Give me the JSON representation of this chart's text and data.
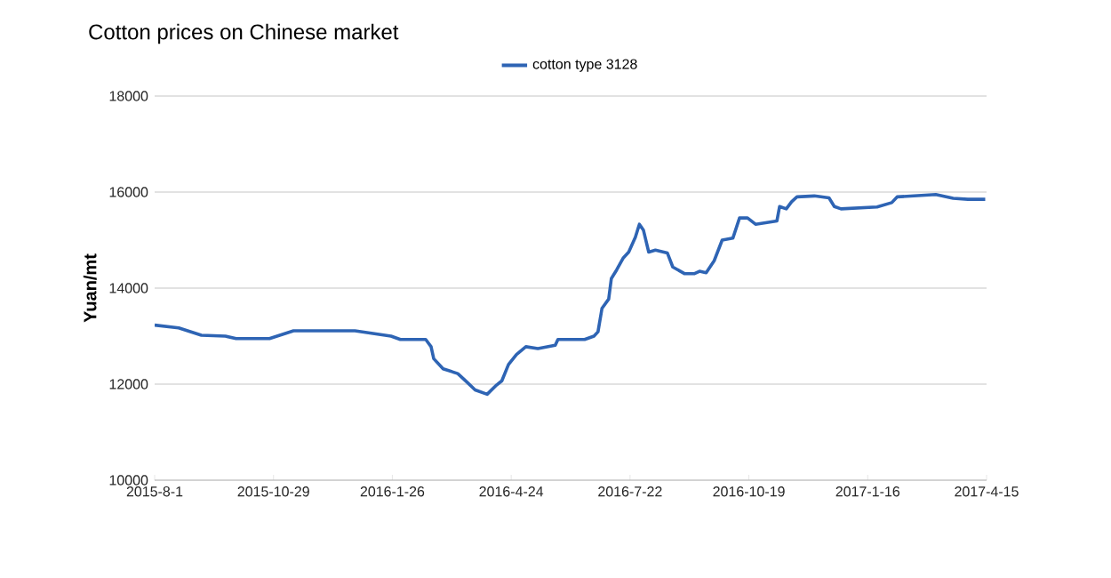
{
  "chart_data": {
    "type": "line",
    "title": "Cotton prices on Chinese market",
    "ylabel": "Yuan/mt",
    "x": [
      "2015-08-01",
      "2015-08-19",
      "2015-09-05",
      "2015-09-23",
      "2015-10-01",
      "2015-10-26",
      "2015-11-13",
      "2015-12-29",
      "2016-01-25",
      "2016-02-01",
      "2016-02-20",
      "2016-02-24",
      "2016-02-26",
      "2016-03-04",
      "2016-03-15",
      "2016-03-22",
      "2016-03-28",
      "2016-04-06",
      "2016-04-13",
      "2016-04-17",
      "2016-04-22",
      "2016-04-28",
      "2016-05-05",
      "2016-05-14",
      "2016-05-27",
      "2016-05-29",
      "2016-06-18",
      "2016-06-25",
      "2016-06-28",
      "2016-07-01",
      "2016-07-06",
      "2016-07-08",
      "2016-07-12",
      "2016-07-17",
      "2016-07-21",
      "2016-07-26",
      "2016-07-29",
      "2016-08-01",
      "2016-08-05",
      "2016-08-10",
      "2016-08-19",
      "2016-08-23",
      "2016-09-01",
      "2016-09-08",
      "2016-09-12",
      "2016-09-17",
      "2016-09-23",
      "2016-09-29",
      "2016-10-07",
      "2016-10-12",
      "2016-10-18",
      "2016-10-24",
      "2016-11-09",
      "2016-11-11",
      "2016-11-16",
      "2016-11-20",
      "2016-11-24",
      "2016-12-07",
      "2016-12-18",
      "2016-12-22",
      "2016-12-27",
      "2017-01-23",
      "2017-02-03",
      "2017-02-07",
      "2017-03-08",
      "2017-03-21",
      "2017-04-01",
      "2017-04-14"
    ],
    "series": [
      {
        "name": "cotton type 3128",
        "color": "#2e64b4",
        "values": [
          13230,
          13170,
          13020,
          13000,
          12950,
          12950,
          13110,
          13110,
          13000,
          12930,
          12930,
          12780,
          12530,
          12320,
          12220,
          12040,
          11880,
          11790,
          11980,
          12070,
          12410,
          12620,
          12780,
          12740,
          12810,
          12930,
          12930,
          13000,
          13090,
          13580,
          13770,
          14200,
          14380,
          14630,
          14750,
          15060,
          15330,
          15210,
          14750,
          14790,
          14730,
          14440,
          14300,
          14300,
          14350,
          14320,
          14570,
          15000,
          15040,
          15460,
          15460,
          15330,
          15400,
          15700,
          15650,
          15800,
          15900,
          15920,
          15880,
          15700,
          15650,
          15690,
          15780,
          15900,
          15950,
          15870,
          15850,
          15850
        ]
      }
    ],
    "xlim": [
      "2015-08-01",
      "2017-04-15"
    ],
    "xticks": [
      {
        "value": "2015-08-01",
        "label": "2015-8-1"
      },
      {
        "value": "2015-10-29",
        "label": "2015-10-29"
      },
      {
        "value": "2016-01-26",
        "label": "2016-1-26"
      },
      {
        "value": "2016-04-24",
        "label": "2016-4-24"
      },
      {
        "value": "2016-07-22",
        "label": "2016-7-22"
      },
      {
        "value": "2016-10-19",
        "label": "2016-10-19"
      },
      {
        "value": "2017-01-16",
        "label": "2017-1-16"
      },
      {
        "value": "2017-04-15",
        "label": "2017-4-15"
      }
    ],
    "ylim": [
      10000,
      18000
    ],
    "yticks": [
      10000,
      12000,
      14000,
      16000,
      18000
    ],
    "grid": "y",
    "legend": "top",
    "marker": "none",
    "line_style": "solid"
  }
}
